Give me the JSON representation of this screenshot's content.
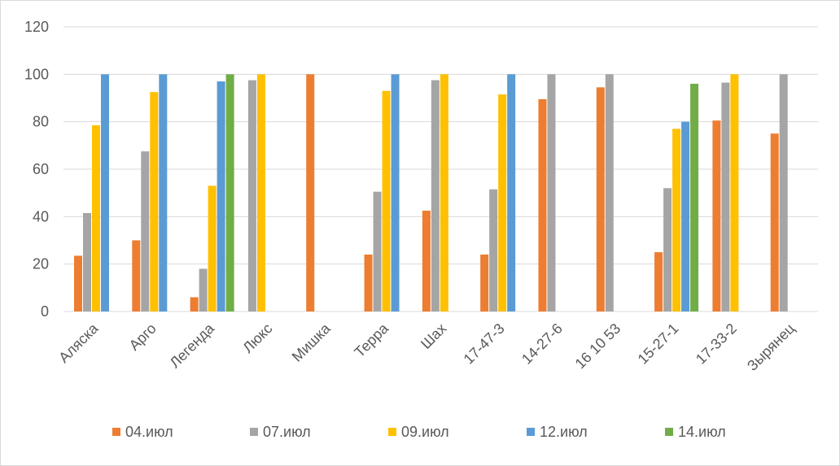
{
  "chart_data": {
    "type": "bar",
    "title": "",
    "xlabel": "",
    "ylabel": "",
    "ylim": [
      0,
      120
    ],
    "yticks": [
      0,
      20,
      40,
      60,
      80,
      100,
      120
    ],
    "grid": true,
    "legend_position": "bottom",
    "categories": [
      "Аляска",
      "Арго",
      "Легенда",
      "Люкс",
      "Мишка",
      "Терра",
      "Шах",
      "17-47-3",
      "14-27-6",
      "16 10 53",
      "15-27-1",
      "17-33-2",
      "Зырянец"
    ],
    "series": [
      {
        "name": "04.июл",
        "color": "#ed7d31",
        "values": [
          23.5,
          30,
          6,
          null,
          100,
          24,
          42.5,
          24,
          89.5,
          94.5,
          25,
          80.5,
          75
        ]
      },
      {
        "name": "07.июл",
        "color": "#a5a5a5",
        "values": [
          41.5,
          67.5,
          18,
          97.5,
          null,
          50.5,
          97.5,
          51.5,
          100,
          100,
          52,
          96.5,
          100
        ]
      },
      {
        "name": "09.июл",
        "color": "#ffc000",
        "values": [
          78.5,
          92.5,
          53,
          100,
          null,
          93,
          100,
          91.5,
          null,
          null,
          77,
          100,
          null
        ]
      },
      {
        "name": "12.июл",
        "color": "#5b9bd5",
        "values": [
          100,
          100,
          97,
          null,
          null,
          100,
          null,
          100,
          null,
          null,
          80,
          null,
          null
        ]
      },
      {
        "name": "14.июл",
        "color": "#70ad47",
        "values": [
          null,
          null,
          100,
          null,
          null,
          null,
          null,
          null,
          null,
          null,
          96,
          null,
          null
        ]
      }
    ]
  }
}
